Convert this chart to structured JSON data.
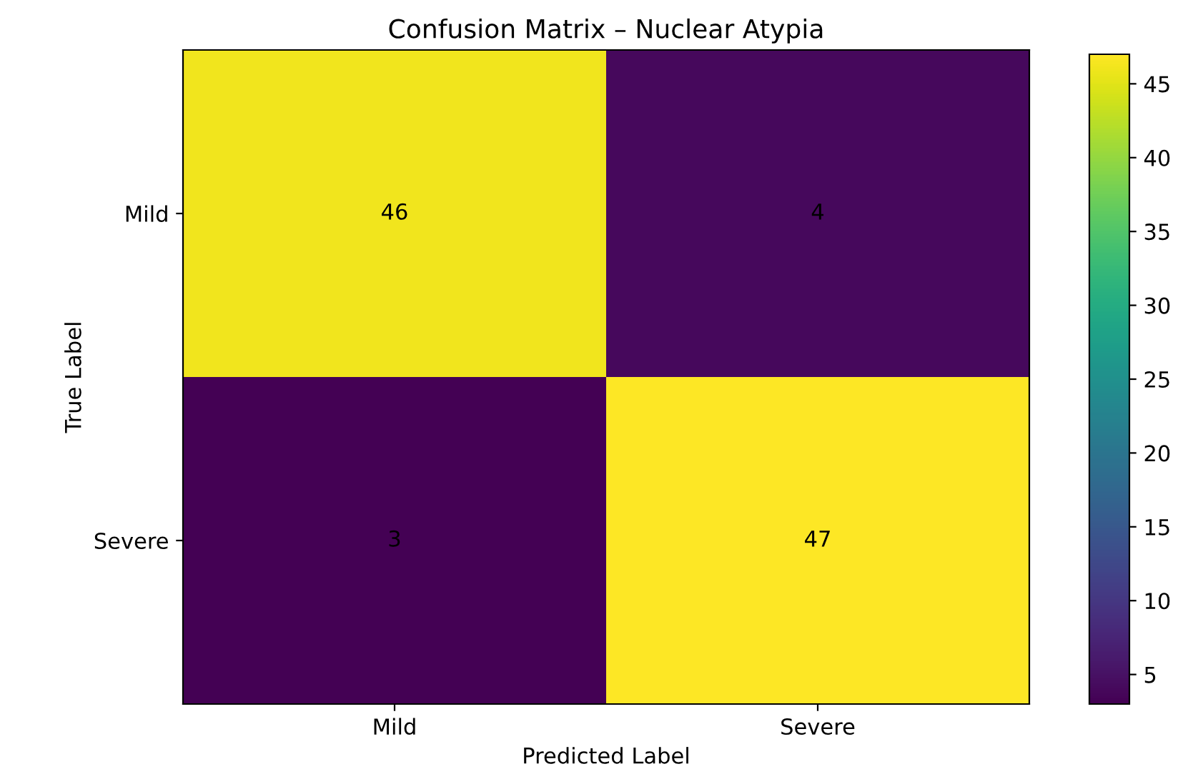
{
  "chart_data": {
    "type": "heatmap",
    "title": "Confusion Matrix – Nuclear Atypia",
    "xlabel": "Predicted Label",
    "ylabel": "True Label",
    "categories": [
      "Mild",
      "Severe"
    ],
    "y_categories": [
      "Mild",
      "Severe"
    ],
    "cells": [
      [
        46,
        4
      ],
      [
        3,
        47
      ]
    ],
    "data_labels": true,
    "clim": [
      3,
      47
    ],
    "cticks": [
      5,
      10,
      15,
      20,
      25,
      30,
      35,
      40,
      45
    ]
  }
}
